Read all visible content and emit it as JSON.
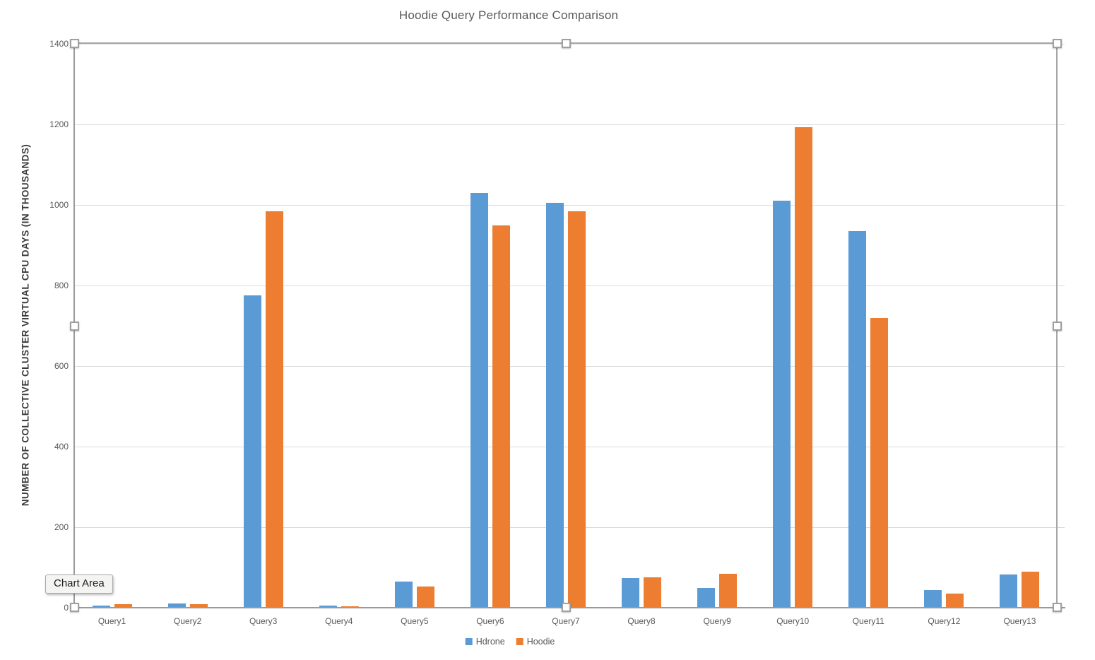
{
  "title": "Hoodie Query Performance Comparison",
  "tooltip": {
    "label": "Chart Area"
  },
  "chart_data": {
    "type": "bar",
    "title": "Hoodie Query Performance Comparison",
    "xlabel": "",
    "ylabel": "NUMBER OF COLLECTIVE CLUSTER VIRTUAL CPU DAYS (IN THOUSANDS)",
    "categories": [
      "Query1",
      "Query2",
      "Query3",
      "Query4",
      "Query5",
      "Query6",
      "Query7",
      "Query8",
      "Query9",
      "Query10",
      "Query11",
      "Query12",
      "Query13"
    ],
    "series": [
      {
        "name": "Hdrone",
        "color": "#5b9bd5",
        "values": [
          5,
          10,
          775,
          5,
          65,
          1030,
          1005,
          74,
          49,
          1010,
          935,
          44,
          82
        ]
      },
      {
        "name": "Hoodie",
        "color": "#ed7d31",
        "values": [
          8,
          8,
          985,
          4,
          52,
          950,
          985,
          75,
          85,
          1193,
          720,
          35,
          90
        ]
      }
    ],
    "ylim": [
      0,
      1400
    ],
    "yticks": [
      0,
      200,
      400,
      600,
      800,
      1000,
      1200,
      1400
    ],
    "grid": true,
    "legend_position": "bottom",
    "selection_state": "chart-area-selected"
  },
  "colors": {
    "hdrone": "#5b9bd5",
    "hoodie": "#ed7d31",
    "gridline": "#dcdcdc",
    "axis": "#9a9a9a",
    "text_muted": "#595959",
    "selection_border": "#a6a6a6"
  }
}
